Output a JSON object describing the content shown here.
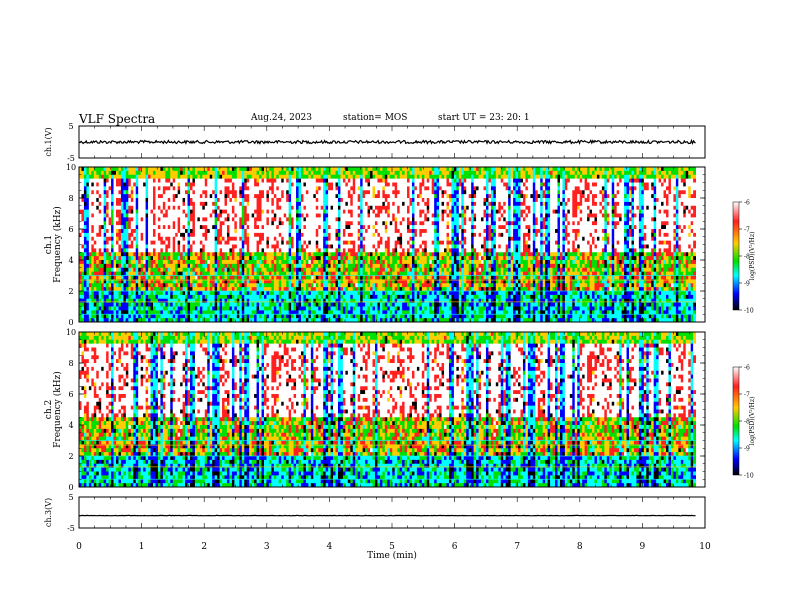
{
  "header": {
    "title": "VLF Spectra",
    "date": "Aug.24, 2023",
    "station": "station= MOS",
    "start_ut": "start  UT =   23: 20: 1"
  },
  "chart_data": [
    {
      "type": "line",
      "name": "ch1-waveform",
      "ylabel": "ch.1(V)",
      "ylim": [
        -5,
        5
      ],
      "yticks": [
        "5",
        "-5"
      ],
      "xlim": [
        0,
        10
      ],
      "description_level": 0
    },
    {
      "type": "heatmap",
      "name": "ch1-spectrogram",
      "ylabel": "ch.1 Frequency (kHz)",
      "ylim": [
        0,
        10
      ],
      "yticks": [
        "0",
        "2",
        "4",
        "6",
        "8",
        "10"
      ],
      "xlim": [
        0,
        9.85
      ],
      "colorbar": {
        "label": "log(PSD)(V²/Hz)",
        "range": [
          -10,
          -6
        ],
        "ticks": [
          "-6",
          "-7",
          "-8",
          "-9",
          "-10"
        ],
        "colors": [
          "#ffffff",
          "#ff0000",
          "#ffff00",
          "#00ff00",
          "#00ffff",
          "#0000ff",
          "#000000"
        ]
      }
    },
    {
      "type": "heatmap",
      "name": "ch2-spectrogram",
      "ylabel": "ch.2 Frequency (kHz)",
      "ylim": [
        0,
        10
      ],
      "yticks": [
        "0",
        "2",
        "4",
        "6",
        "8",
        "10"
      ],
      "xlim": [
        0,
        9.85
      ],
      "colorbar": {
        "label": "log(PSD)(V²/Hz)",
        "range": [
          -10,
          -6
        ],
        "ticks": [
          "-6",
          "-7",
          "-8",
          "-9",
          "-10"
        ]
      }
    },
    {
      "type": "line",
      "name": "ch3-waveform",
      "ylabel": "ch.3(V)",
      "ylim": [
        -5,
        5
      ],
      "yticks": [
        "5",
        "-5"
      ],
      "xlim": [
        0,
        10
      ],
      "level": -1
    }
  ],
  "xaxis": {
    "label": "Time  (min)",
    "ticks": [
      "0",
      "1",
      "2",
      "3",
      "4",
      "5",
      "6",
      "7",
      "8",
      "9",
      "10"
    ]
  }
}
